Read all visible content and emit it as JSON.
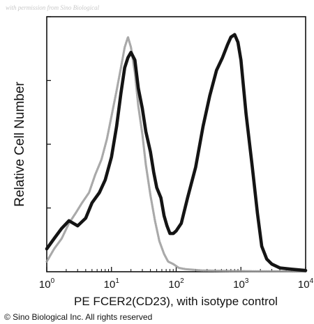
{
  "chart_data": {
    "type": "line",
    "title": "",
    "watermark": "with permission from Sino Biological",
    "xlabel": "PE FCER2(CD23), with isotype control",
    "ylabel": "Relative Cell Number",
    "x_scale": "log",
    "xlim": [
      1,
      10000
    ],
    "ylim": [
      0,
      100
    ],
    "x_ticks": [
      {
        "base": "10",
        "exp": "0",
        "value": 1
      },
      {
        "base": "10",
        "exp": "1",
        "value": 10
      },
      {
        "base": "10",
        "exp": "2",
        "value": 100
      },
      {
        "base": "10",
        "exp": "3",
        "value": 1000
      },
      {
        "base": "10",
        "exp": "4",
        "value": 10000
      }
    ],
    "grid": false,
    "legend": "none",
    "colors": {
      "isotype": "#9a9a9a",
      "stained": "#141414"
    },
    "series": [
      {
        "style": "isotype",
        "x": [
          1,
          1.3,
          1.7,
          2.2,
          2.8,
          3.5,
          4.5,
          5.6,
          7,
          8.5,
          10,
          12,
          14,
          16,
          18,
          20,
          23,
          26,
          30,
          34,
          40,
          47,
          55,
          65,
          75,
          90,
          110,
          140,
          180,
          250,
          400,
          700,
          1500,
          3000,
          10000
        ],
        "y": [
          4,
          9,
          13,
          19,
          23,
          27,
          31,
          38,
          44,
          52,
          61,
          71,
          80,
          88,
          92,
          88,
          78,
          65,
          54,
          42,
          30,
          20,
          12,
          7,
          4,
          3,
          1.5,
          1,
          0.8,
          0.5,
          0.4,
          0.3,
          0.2,
          0.2,
          0.1
        ]
      },
      {
        "style": "stained",
        "x": [
          1,
          1.3,
          1.7,
          2.2,
          3,
          4,
          5,
          6.5,
          8,
          10,
          12,
          14,
          16,
          18,
          20,
          23,
          26,
          30,
          34,
          40,
          45,
          50,
          58,
          65,
          72,
          80,
          90,
          100,
          120,
          150,
          200,
          260,
          330,
          420,
          520,
          620,
          700,
          800,
          900,
          1000,
          1200,
          1500,
          1800,
          2100,
          2500,
          3000,
          4000,
          6000,
          10000
        ],
        "y": [
          9,
          13,
          17,
          20,
          18,
          21,
          27,
          31,
          36,
          45,
          57,
          70,
          80,
          84,
          86,
          83,
          72,
          64,
          55,
          47,
          39,
          33,
          29,
          22,
          18,
          15,
          15,
          16,
          19,
          29,
          41,
          57,
          69,
          79,
          84,
          89,
          92,
          93,
          90,
          83,
          62,
          41,
          23,
          10,
          5,
          3,
          1.5,
          1,
          0.5
        ]
      }
    ]
  },
  "copyright": "© Sino Biological Inc. All rights reserved"
}
